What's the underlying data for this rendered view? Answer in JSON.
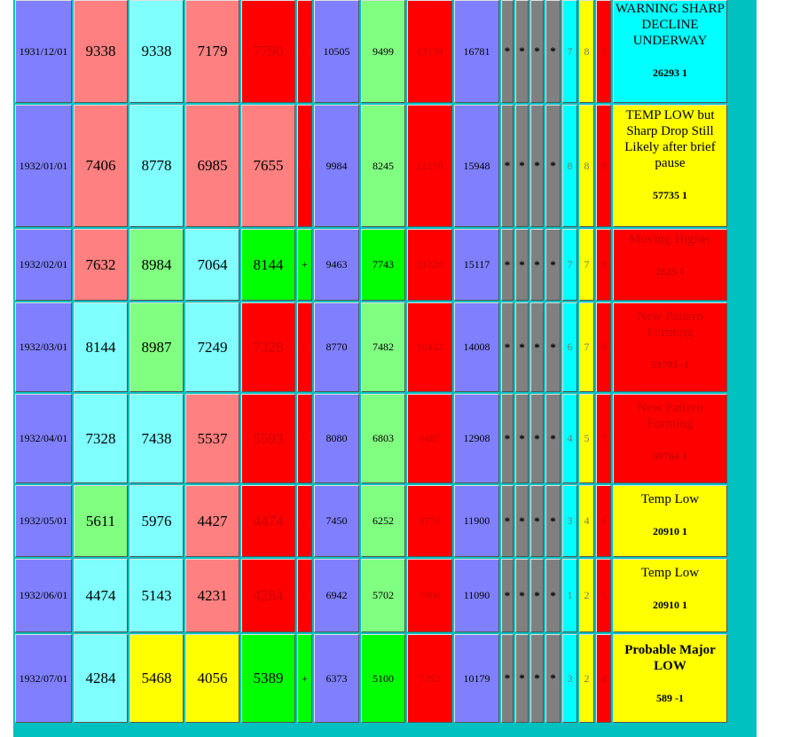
{
  "colors": {
    "frame": "#00C0C0",
    "blue": "#8080ff",
    "pink": "#ff8080",
    "cyan": "#80ffff",
    "red": "#ff0000",
    "green": "#00ff00",
    "light_green": "#80ff80",
    "yellow": "#ffff00",
    "gray": "#808080",
    "aqua": "#00ffff"
  },
  "rows": [
    {
      "date": "1931/12/01",
      "v1": "9338",
      "v2": "9338",
      "v3": "7179",
      "v4": "7790",
      "sign": "-",
      "w1": "10505",
      "w2": "9499",
      "w3": "13159",
      "w4": "16781",
      "stars": [
        "*",
        "*",
        "*",
        "*"
      ],
      "n1": "7",
      "n2": "8",
      "n3": "9",
      "message": "WARNING SHARP DECLINE UNDERWAY",
      "code": "26293 1"
    },
    {
      "date": "1932/01/01",
      "v1": "7406",
      "v2": "8778",
      "v3": "6985",
      "v4": "7655",
      "sign": "-",
      "w1": "9984",
      "w2": "8245",
      "w3": "12176",
      "w4": "15948",
      "stars": [
        "*",
        "*",
        "*",
        "*"
      ],
      "n1": "8",
      "n2": "8",
      "n3": "9",
      "message": "TEMP LOW but Sharp Drop Still Likely after brief pause",
      "code": "57735 1"
    },
    {
      "date": "1932/02/01",
      "v1": "7632",
      "v2": "8984",
      "v3": "7064",
      "v4": "8144",
      "sign": "+",
      "w1": "9463",
      "w2": "7743",
      "w3": "11220",
      "w4": "15117",
      "stars": [
        "*",
        "*",
        "*",
        "*"
      ],
      "n1": "7",
      "n2": "7",
      "n3": "8",
      "message": "Moving Higher",
      "code": "2625 1"
    },
    {
      "date": "1932/03/01",
      "v1": "8144",
      "v2": "8987",
      "v3": "7249",
      "v4": "7328",
      "sign": "-",
      "w1": "8770",
      "w2": "7482",
      "w3": "10432",
      "w4": "14008",
      "stars": [
        "*",
        "*",
        "*",
        "*"
      ],
      "n1": "6",
      "n2": "7",
      "n3": "8",
      "message": "New Pattern Forming",
      "code": "59793 -1"
    },
    {
      "date": "1932/04/01",
      "v1": "7328",
      "v2": "7438",
      "v3": "5537",
      "v4": "5593",
      "sign": "-",
      "w1": "8080",
      "w2": "6803",
      "w3": "9487",
      "w4": "12908",
      "stars": [
        "*",
        "*",
        "*",
        "*"
      ],
      "n1": "4",
      "n2": "5",
      "n3": "7",
      "message": "New Pattern Forming",
      "code": "59764 1"
    },
    {
      "date": "1932/05/01",
      "v1": "5611",
      "v2": "5976",
      "v3": "4427",
      "v4": "4474",
      "sign": "-",
      "w1": "7450",
      "w2": "6252",
      "w3": "8774",
      "w4": "11900",
      "stars": [
        "*",
        "*",
        "*",
        "*"
      ],
      "n1": "3",
      "n2": "4",
      "n3": "6",
      "message": "Temp Low",
      "code": "20910 1"
    },
    {
      "date": "1932/06/01",
      "v1": "4474",
      "v2": "5143",
      "v3": "4231",
      "v4": "4284",
      "sign": "-",
      "w1": "6942",
      "w2": "5702",
      "w3": "7806",
      "w4": "11090",
      "stars": [
        "*",
        "*",
        "*",
        "*"
      ],
      "n1": "1",
      "n2": "2",
      "n3": "5",
      "message": "Temp Low",
      "code": "20910 1"
    },
    {
      "date": "1932/07/01",
      "v1": "4284",
      "v2": "5468",
      "v3": "4056",
      "v4": "5389",
      "sign": "+",
      "w1": "6373",
      "w2": "5100",
      "w3": "7253",
      "w4": "10179",
      "stars": [
        "*",
        "*",
        "*",
        "*"
      ],
      "n1": "3",
      "n2": "2",
      "n3": "4",
      "message": "Probable Major LOW",
      "code": "589 -1"
    }
  ]
}
